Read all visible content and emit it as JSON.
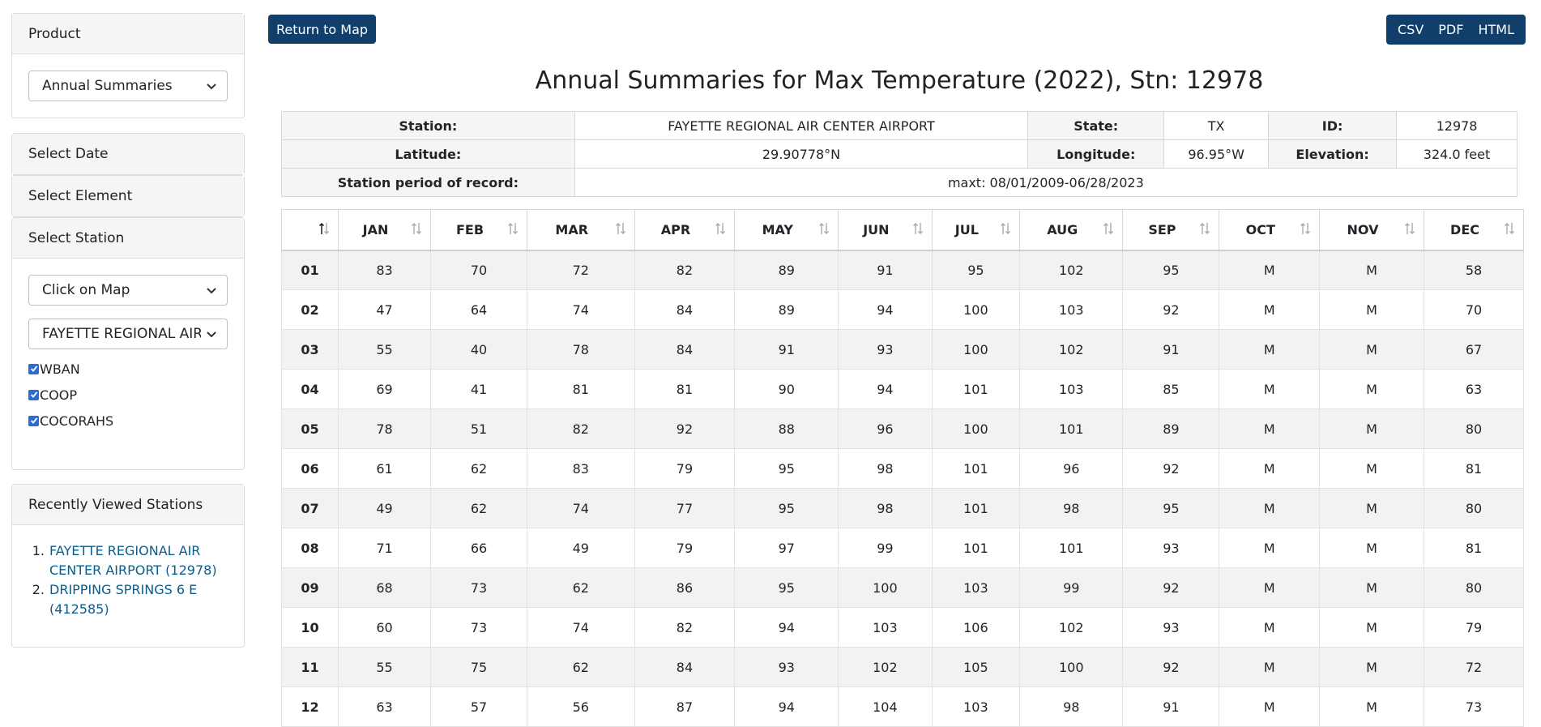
{
  "sidebar": {
    "product": {
      "heading": "Product",
      "selected": "Annual Summaries"
    },
    "collapsed_panels": [
      "Select Date",
      "Select Element"
    ],
    "station": {
      "heading": "Select Station",
      "method_selected": "Click on Map",
      "station_selected": "FAYETTE REGIONAL AIR CENTER AIRPORT",
      "checkboxes": [
        {
          "label": "WBAN",
          "checked": true
        },
        {
          "label": "COOP",
          "checked": true
        },
        {
          "label": "COCORAHS",
          "checked": true
        }
      ]
    },
    "recent": {
      "heading": "Recently Viewed Stations",
      "items": [
        {
          "number": "1.",
          "line1": "FAYETTE REGIONAL AIR",
          "line2": "CENTER AIRPORT (12978)"
        },
        {
          "number": "2.",
          "line1": "DRIPPING SPRINGS 6 E",
          "line2": "(412585)"
        }
      ]
    }
  },
  "toolbar": {
    "return_label": "Return to Map",
    "exports": [
      "CSV",
      "PDF",
      "HTML"
    ]
  },
  "title": "Annual Summaries for Max Temperature (2022), Stn: 12978",
  "station_info": {
    "station_label": "Station:",
    "station_value": "FAYETTE REGIONAL AIR CENTER AIRPORT",
    "state_label": "State:",
    "state_value": "TX",
    "id_label": "ID:",
    "id_value": "12978",
    "lat_label": "Latitude:",
    "lat_value": "29.90778°N",
    "lon_label": "Longitude:",
    "lon_value": "96.95°W",
    "elev_label": "Elevation:",
    "elev_value": "324.0 feet",
    "period_label": "Station period of record:",
    "period_value": "maxt: 08/01/2009-06/28/2023"
  },
  "table": {
    "sort_glyph": "↑↓",
    "headers": [
      "JAN",
      "FEB",
      "MAR",
      "APR",
      "MAY",
      "JUN",
      "JUL",
      "AUG",
      "SEP",
      "OCT",
      "NOV",
      "DEC"
    ],
    "rows": [
      {
        "day": "01",
        "values": [
          "83",
          "70",
          "72",
          "82",
          "89",
          "91",
          "95",
          "102",
          "95",
          "M",
          "M",
          "58"
        ]
      },
      {
        "day": "02",
        "values": [
          "47",
          "64",
          "74",
          "84",
          "89",
          "94",
          "100",
          "103",
          "92",
          "M",
          "M",
          "70"
        ]
      },
      {
        "day": "03",
        "values": [
          "55",
          "40",
          "78",
          "84",
          "91",
          "93",
          "100",
          "102",
          "91",
          "M",
          "M",
          "67"
        ]
      },
      {
        "day": "04",
        "values": [
          "69",
          "41",
          "81",
          "81",
          "90",
          "94",
          "101",
          "103",
          "85",
          "M",
          "M",
          "63"
        ]
      },
      {
        "day": "05",
        "values": [
          "78",
          "51",
          "82",
          "92",
          "88",
          "96",
          "100",
          "101",
          "89",
          "M",
          "M",
          "80"
        ]
      },
      {
        "day": "06",
        "values": [
          "61",
          "62",
          "83",
          "79",
          "95",
          "98",
          "101",
          "96",
          "92",
          "M",
          "M",
          "81"
        ]
      },
      {
        "day": "07",
        "values": [
          "49",
          "62",
          "74",
          "77",
          "95",
          "98",
          "101",
          "98",
          "95",
          "M",
          "M",
          "80"
        ]
      },
      {
        "day": "08",
        "values": [
          "71",
          "66",
          "49",
          "79",
          "97",
          "99",
          "101",
          "101",
          "93",
          "M",
          "M",
          "81"
        ]
      },
      {
        "day": "09",
        "values": [
          "68",
          "73",
          "62",
          "86",
          "95",
          "100",
          "103",
          "99",
          "92",
          "M",
          "M",
          "80"
        ]
      },
      {
        "day": "10",
        "values": [
          "60",
          "73",
          "74",
          "82",
          "94",
          "103",
          "106",
          "102",
          "93",
          "M",
          "M",
          "79"
        ]
      },
      {
        "day": "11",
        "values": [
          "55",
          "75",
          "62",
          "84",
          "93",
          "102",
          "105",
          "100",
          "92",
          "M",
          "M",
          "72"
        ]
      },
      {
        "day": "12",
        "values": [
          "63",
          "57",
          "56",
          "87",
          "94",
          "104",
          "103",
          "98",
          "91",
          "M",
          "M",
          "73"
        ]
      }
    ]
  },
  "colors": {
    "button_bg": "#123e6b",
    "link": "#0a5d8a",
    "panel_header": "#f5f5f5",
    "stripe": "#f2f2f2"
  }
}
